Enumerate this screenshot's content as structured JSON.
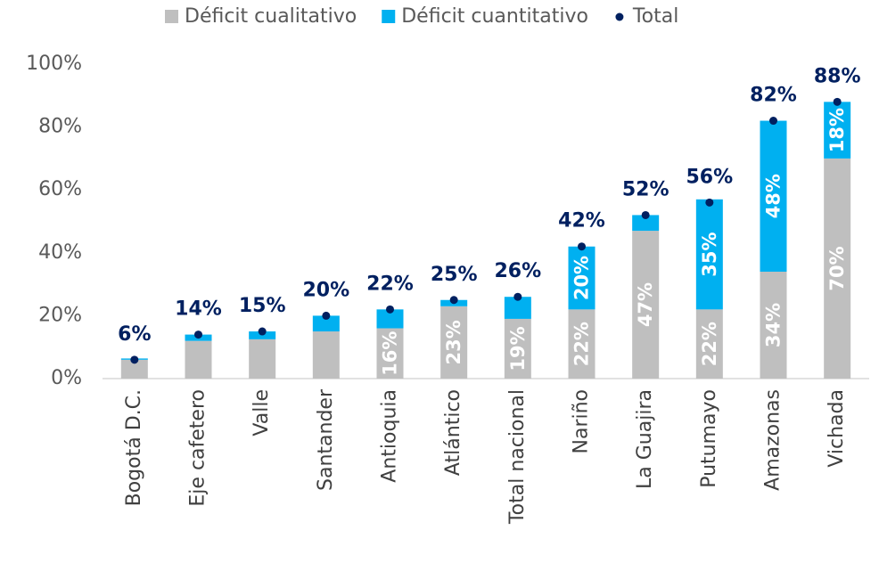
{
  "chart_data": {
    "type": "stacked_bar",
    "categories": [
      "Bogotá D.C.",
      "Eje cafetero",
      "Valle",
      "Santander",
      "Antioquia",
      "Atlántico",
      "Total nacional",
      "Nariño",
      "La Guajira",
      "Putumayo",
      "Amazonas",
      "Vichada"
    ],
    "series": [
      {
        "name": "Déficit cualitativo",
        "color": "#bfbfbf",
        "values": [
          6,
          12,
          12.5,
          15,
          16,
          23,
          19,
          22,
          47,
          22,
          34,
          70
        ],
        "value_labels": [
          null,
          null,
          null,
          null,
          "16%",
          "23%",
          "19%",
          "22%",
          "47%",
          "22%",
          "34%",
          "70%"
        ]
      },
      {
        "name": "Déficit cuantitativo",
        "color": "#00b0f0",
        "values": [
          0.4,
          2,
          2.5,
          5,
          6,
          2,
          7,
          20,
          5,
          35,
          48,
          18
        ],
        "value_labels": [
          null,
          null,
          null,
          null,
          null,
          null,
          null,
          "20%",
          null,
          "35%",
          "48%",
          "18%"
        ]
      },
      {
        "name": "Total",
        "color": "#002060",
        "marker": "dot",
        "values": [
          6,
          14,
          15,
          20,
          22,
          25,
          26,
          42,
          52,
          56,
          82,
          88
        ],
        "value_labels": [
          "6%",
          "14%",
          "15%",
          "20%",
          "22%",
          "25%",
          "26%",
          "42%",
          "52%",
          "56%",
          "82%",
          "88%"
        ]
      }
    ],
    "ylim": [
      0,
      100
    ],
    "yticks": [
      {
        "value": 0,
        "label": "0%"
      },
      {
        "value": 20,
        "label": "20%"
      },
      {
        "value": 40,
        "label": "40%"
      },
      {
        "value": 60,
        "label": "60%"
      },
      {
        "value": 80,
        "label": "80%"
      },
      {
        "value": 100,
        "label": "100%"
      }
    ],
    "grid": false,
    "legend": "top"
  }
}
